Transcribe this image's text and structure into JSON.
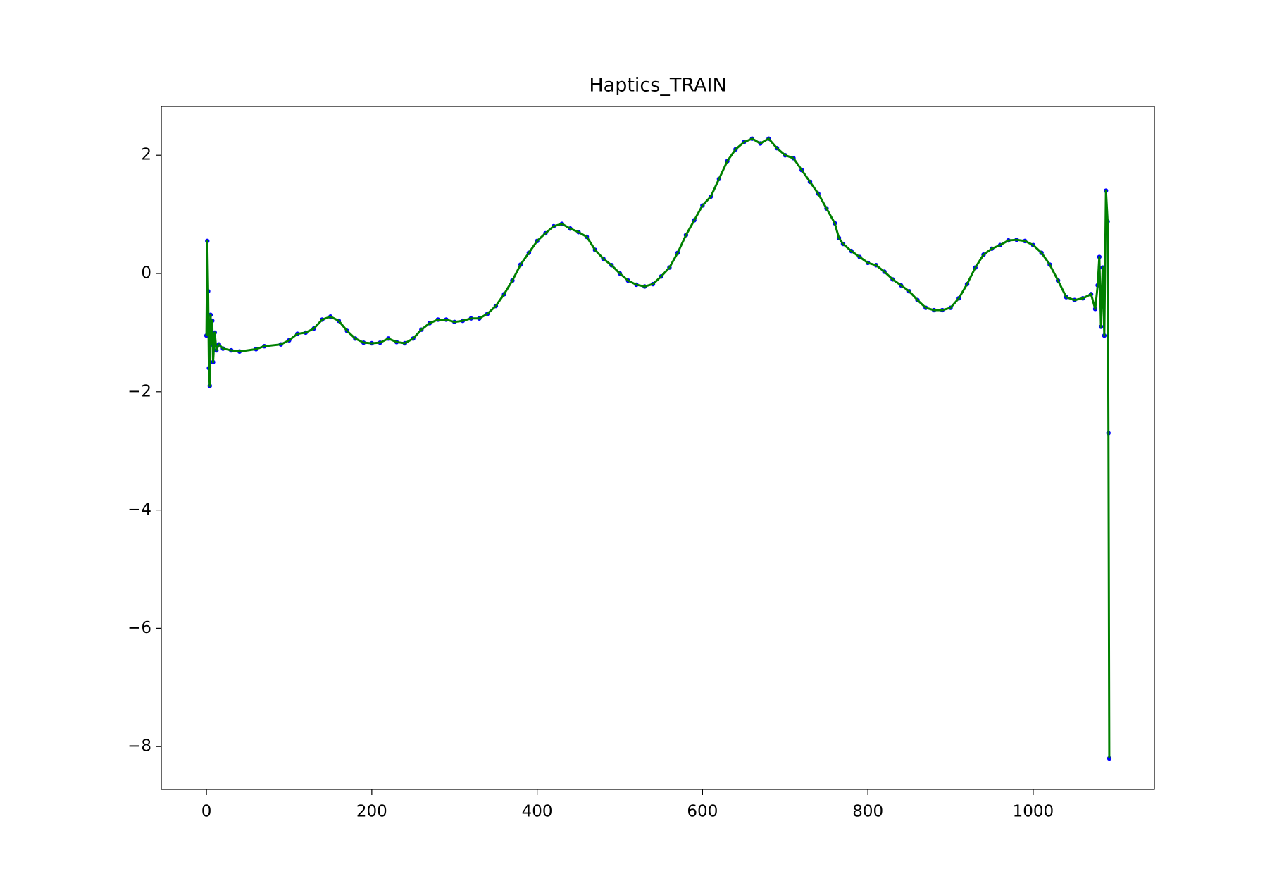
{
  "chart_data": {
    "type": "line",
    "title": "Haptics_TRAIN",
    "x": [
      0,
      1,
      2,
      3,
      4,
      5,
      6,
      7,
      8,
      10,
      12,
      15,
      20,
      30,
      40,
      60,
      70,
      90,
      100,
      110,
      120,
      130,
      140,
      150,
      160,
      170,
      180,
      190,
      200,
      210,
      220,
      230,
      240,
      250,
      260,
      270,
      280,
      290,
      300,
      310,
      320,
      330,
      340,
      350,
      360,
      370,
      380,
      390,
      400,
      410,
      420,
      430,
      440,
      450,
      460,
      470,
      480,
      490,
      500,
      510,
      520,
      530,
      540,
      550,
      560,
      570,
      580,
      590,
      600,
      610,
      620,
      630,
      640,
      650,
      660,
      670,
      680,
      690,
      700,
      710,
      720,
      730,
      740,
      750,
      760,
      765,
      770,
      780,
      790,
      800,
      810,
      820,
      830,
      840,
      850,
      860,
      870,
      880,
      890,
      900,
      910,
      920,
      930,
      940,
      950,
      960,
      970,
      980,
      990,
      1000,
      1010,
      1020,
      1030,
      1040,
      1050,
      1060,
      1070,
      1075,
      1078,
      1080,
      1082,
      1084,
      1086,
      1088,
      1090,
      1091,
      1092
    ],
    "series": [
      {
        "color": "#008000",
        "marker_color": "#0000ff",
        "values": [
          -1.05,
          0.55,
          -0.3,
          -1.6,
          -1.9,
          -0.7,
          -1.2,
          -0.8,
          -1.5,
          -1.0,
          -1.3,
          -1.2,
          -1.27,
          -1.3,
          -1.32,
          -1.28,
          -1.23,
          -1.2,
          -1.13,
          -1.02,
          -1.0,
          -0.93,
          -0.78,
          -0.73,
          -0.8,
          -0.97,
          -1.1,
          -1.17,
          -1.18,
          -1.17,
          -1.1,
          -1.16,
          -1.18,
          -1.1,
          -0.95,
          -0.84,
          -0.78,
          -0.78,
          -0.82,
          -0.8,
          -0.76,
          -0.76,
          -0.68,
          -0.55,
          -0.35,
          -0.12,
          0.15,
          0.35,
          0.55,
          0.68,
          0.8,
          0.84,
          0.76,
          0.7,
          0.62,
          0.4,
          0.25,
          0.14,
          0.0,
          -0.12,
          -0.19,
          -0.22,
          -0.18,
          -0.05,
          0.1,
          0.35,
          0.65,
          0.9,
          1.15,
          1.3,
          1.6,
          1.9,
          2.1,
          2.22,
          2.28,
          2.2,
          2.28,
          2.12,
          2.0,
          1.95,
          1.75,
          1.55,
          1.35,
          1.1,
          0.85,
          0.6,
          0.5,
          0.38,
          0.28,
          0.18,
          0.14,
          0.03,
          -0.1,
          -0.2,
          -0.3,
          -0.45,
          -0.58,
          -0.62,
          -0.62,
          -0.58,
          -0.42,
          -0.18,
          0.1,
          0.32,
          0.42,
          0.48,
          0.56,
          0.57,
          0.55,
          0.48,
          0.35,
          0.15,
          -0.12,
          -0.4,
          -0.45,
          -0.42,
          -0.35,
          -0.6,
          -0.2,
          0.28,
          -0.9,
          0.1,
          -1.05,
          1.4,
          0.88,
          -2.7,
          -8.2
        ]
      }
    ],
    "xlim": [
      -54.6,
      1146.6
    ],
    "ylim": [
      -8.725,
      2.825
    ],
    "xticks": [
      0,
      200,
      400,
      600,
      800,
      1000
    ],
    "yticks": [
      {
        "value": -8,
        "label": "−8"
      },
      {
        "value": -6,
        "label": "−6"
      },
      {
        "value": -4,
        "label": "−4"
      },
      {
        "value": -2,
        "label": "−2"
      },
      0,
      2
    ]
  }
}
